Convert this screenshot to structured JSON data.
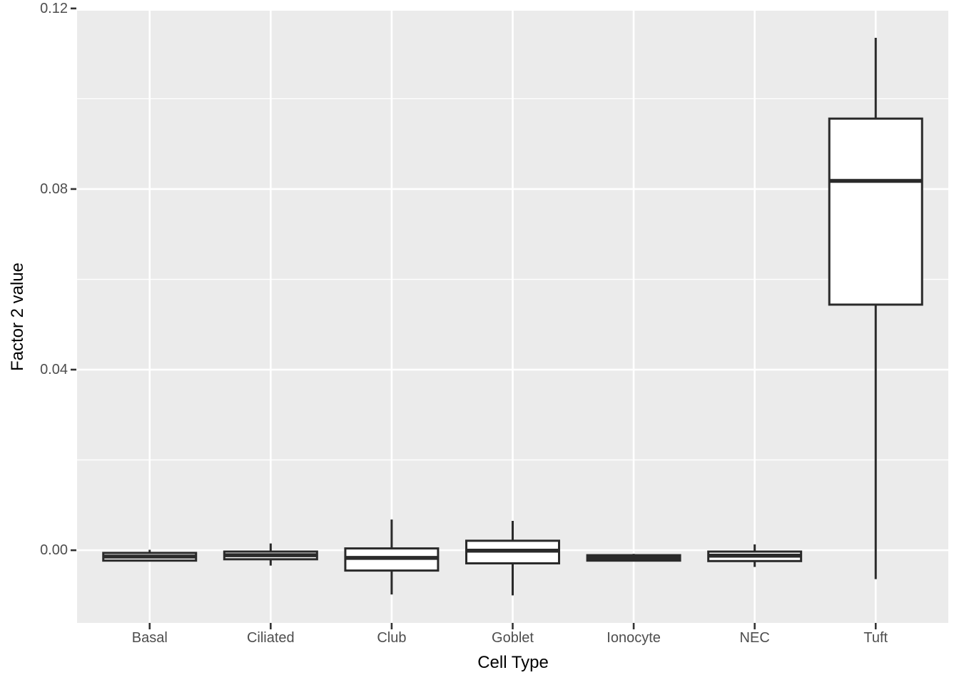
{
  "chart_data": {
    "type": "boxplot",
    "title": "",
    "xlabel": "Cell Type",
    "ylabel": "Factor 2 value",
    "categories": [
      "Basal",
      "Ciliated",
      "Club",
      "Goblet",
      "Ionocyte",
      "NEC",
      "Tuft"
    ],
    "boxes": [
      {
        "category": "Basal",
        "whisker_low": -0.0025,
        "q1": -0.0023,
        "median": -0.0014,
        "q3": -0.0006,
        "whisker_high": 0.0001
      },
      {
        "category": "Ciliated",
        "whisker_low": -0.0034,
        "q1": -0.002,
        "median": -0.0011,
        "q3": -0.0003,
        "whisker_high": 0.0015
      },
      {
        "category": "Club",
        "whisker_low": -0.0098,
        "q1": -0.0045,
        "median": -0.0017,
        "q3": 0.0004,
        "whisker_high": 0.0068
      },
      {
        "category": "Goblet",
        "whisker_low": -0.01,
        "q1": -0.0029,
        "median": -0.0001,
        "q3": 0.0021,
        "whisker_high": 0.0065
      },
      {
        "category": "Ionocyte",
        "whisker_low": -0.0025,
        "q1": -0.0023,
        "median": -0.0017,
        "q3": -0.0011,
        "whisker_high": -0.0008
      },
      {
        "category": "NEC",
        "whisker_low": -0.0037,
        "q1": -0.0024,
        "median": -0.0012,
        "q3": -0.0003,
        "whisker_high": 0.0013
      },
      {
        "category": "Tuft",
        "whisker_low": -0.0064,
        "q1": 0.0544,
        "median": 0.0818,
        "q3": 0.0956,
        "whisker_high": 0.1135
      }
    ],
    "ylim": [
      -0.0161,
      0.1195
    ],
    "yticks": {
      "values": [
        0.0,
        0.04,
        0.08,
        0.12
      ],
      "labels": [
        "0.00",
        "0.04",
        "0.08",
        "0.12"
      ]
    },
    "yminor": [
      0.02,
      0.06,
      0.1
    ],
    "grid": "horizontal major+minor, vertical major at category centers",
    "legend": false,
    "style_note": "ggplot2 theme_gray boxplot"
  },
  "colors": {
    "figure_bg": "#ffffff",
    "panel_bg": "#ebebeb",
    "gridline": "#ffffff",
    "box_stroke": "#2a2a2a",
    "box_fill": "#ffffff",
    "tick_mark": "#333333",
    "axis_text": "#4d4d4d",
    "axis_title": "#000000"
  }
}
